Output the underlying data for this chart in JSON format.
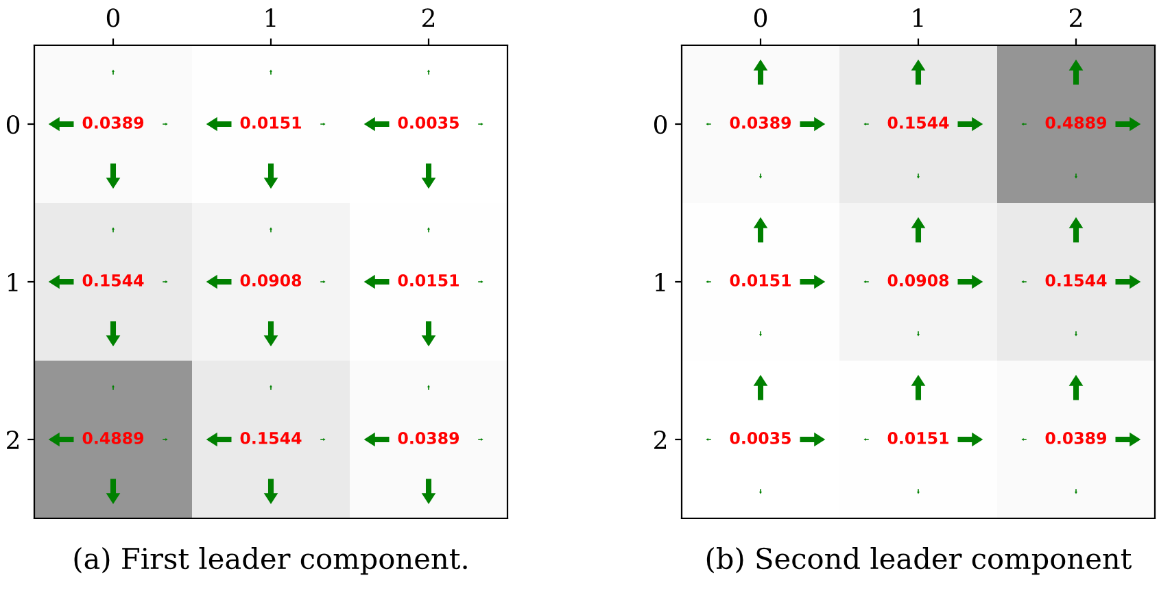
{
  "chart_data": [
    {
      "type": "heatmap",
      "title": "(a) First leader component.",
      "categories": [
        "0",
        "1",
        "2"
      ],
      "y_categories": [
        "0",
        "1",
        "2"
      ],
      "data_labels": true,
      "cells": [
        [
          0.0389,
          0.0151,
          0.0035
        ],
        [
          0.1544,
          0.0908,
          0.0151
        ],
        [
          0.4889,
          0.1544,
          0.0389
        ]
      ]
    },
    {
      "type": "heatmap",
      "title": "(b) Second leader component",
      "categories": [
        "0",
        "1",
        "2"
      ],
      "y_categories": [
        "0",
        "1",
        "2"
      ],
      "data_labels": true,
      "cells": [
        [
          0.0389,
          0.1544,
          0.4889
        ],
        [
          0.0151,
          0.0908,
          0.1544
        ],
        [
          0.0035,
          0.0151,
          0.0389
        ]
      ]
    }
  ]
}
